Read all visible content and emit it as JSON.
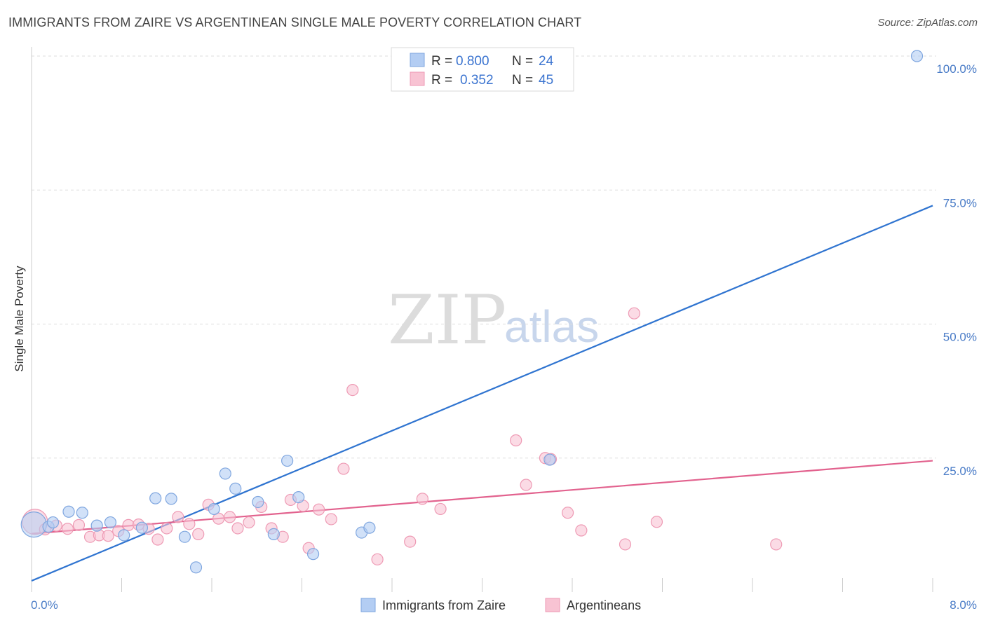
{
  "chart_data": {
    "type": "scatter",
    "title": "IMMIGRANTS FROM ZAIRE VS ARGENTINEAN SINGLE MALE POVERTY CORRELATION CHART",
    "source": "Source: ZipAtlas.com",
    "xlabel": "",
    "ylabel": "Single Male Poverty",
    "xlim": [
      0,
      8
    ],
    "ylim": [
      0,
      100
    ],
    "x_tick_labels": [
      "0.0%",
      "8.0%"
    ],
    "y_ticks": [
      25,
      50,
      75,
      100
    ],
    "y_tick_labels": [
      "25.0%",
      "50.0%",
      "75.0%",
      "100.0%"
    ],
    "grid": true,
    "watermark": {
      "zip": "ZIP",
      "atlas": "atlas"
    },
    "colors": {
      "blue_fill": "#b3cdf3",
      "blue_stroke": "#7fa6df",
      "blue_line": "#2f74d0",
      "pink_fill": "#f8c3d3",
      "pink_stroke": "#ee9ab4",
      "pink_line": "#e2628e"
    },
    "stats": [
      {
        "r_label": "R = ",
        "r_value": "0.800",
        "n_label": "N = ",
        "n_value": "24"
      },
      {
        "r_label": "R = ",
        "r_value": "0.352",
        "n_label": "N = ",
        "n_value": "45"
      }
    ],
    "series": [
      {
        "name": "Immigrants from Zaire",
        "color": "blue",
        "trend": {
          "x": [
            0,
            8
          ],
          "y": [
            2.1,
            72.1
          ]
        },
        "points": [
          {
            "x": 0.02,
            "y": 12.6,
            "big": true
          },
          {
            "x": 0.15,
            "y": 12.2
          },
          {
            "x": 0.19,
            "y": 13.0
          },
          {
            "x": 0.33,
            "y": 15.0
          },
          {
            "x": 0.45,
            "y": 14.8
          },
          {
            "x": 0.58,
            "y": 12.4
          },
          {
            "x": 0.7,
            "y": 13.0
          },
          {
            "x": 0.82,
            "y": 10.6
          },
          {
            "x": 0.98,
            "y": 12.0
          },
          {
            "x": 1.1,
            "y": 17.5
          },
          {
            "x": 1.24,
            "y": 17.4
          },
          {
            "x": 1.36,
            "y": 10.3
          },
          {
            "x": 1.46,
            "y": 4.6
          },
          {
            "x": 1.62,
            "y": 15.5
          },
          {
            "x": 1.72,
            "y": 22.1
          },
          {
            "x": 1.81,
            "y": 19.3
          },
          {
            "x": 2.01,
            "y": 16.8
          },
          {
            "x": 2.15,
            "y": 10.8
          },
          {
            "x": 2.27,
            "y": 24.5
          },
          {
            "x": 2.37,
            "y": 17.7
          },
          {
            "x": 2.5,
            "y": 7.1
          },
          {
            "x": 2.93,
            "y": 11.1
          },
          {
            "x": 3.0,
            "y": 12.0
          },
          {
            "x": 4.6,
            "y": 24.7
          },
          {
            "x": 7.86,
            "y": 100.0
          }
        ]
      },
      {
        "name": "Argentineans",
        "color": "pink",
        "trend": {
          "x": [
            0,
            8
          ],
          "y": [
            10.9,
            24.5
          ]
        },
        "points": [
          {
            "x": 0.03,
            "y": 13.1,
            "big": true
          },
          {
            "x": 0.12,
            "y": 11.7
          },
          {
            "x": 0.22,
            "y": 12.4
          },
          {
            "x": 0.32,
            "y": 11.8
          },
          {
            "x": 0.42,
            "y": 12.5
          },
          {
            "x": 0.52,
            "y": 10.3
          },
          {
            "x": 0.6,
            "y": 10.6
          },
          {
            "x": 0.68,
            "y": 10.5
          },
          {
            "x": 0.77,
            "y": 11.4
          },
          {
            "x": 0.86,
            "y": 12.5
          },
          {
            "x": 0.95,
            "y": 12.6
          },
          {
            "x": 1.04,
            "y": 11.8
          },
          {
            "x": 1.12,
            "y": 9.8
          },
          {
            "x": 1.2,
            "y": 11.9
          },
          {
            "x": 1.3,
            "y": 14.0
          },
          {
            "x": 1.4,
            "y": 12.7
          },
          {
            "x": 1.48,
            "y": 10.8
          },
          {
            "x": 1.57,
            "y": 16.3
          },
          {
            "x": 1.66,
            "y": 13.7
          },
          {
            "x": 1.76,
            "y": 14.0
          },
          {
            "x": 1.83,
            "y": 11.9
          },
          {
            "x": 1.93,
            "y": 13.0
          },
          {
            "x": 2.04,
            "y": 15.9
          },
          {
            "x": 2.13,
            "y": 11.9
          },
          {
            "x": 2.23,
            "y": 10.3
          },
          {
            "x": 2.3,
            "y": 17.2
          },
          {
            "x": 2.41,
            "y": 16.1
          },
          {
            "x": 2.46,
            "y": 8.2
          },
          {
            "x": 2.55,
            "y": 15.4
          },
          {
            "x": 2.66,
            "y": 13.6
          },
          {
            "x": 2.77,
            "y": 23.0
          },
          {
            "x": 2.85,
            "y": 37.7
          },
          {
            "x": 3.07,
            "y": 6.1
          },
          {
            "x": 3.36,
            "y": 9.4
          },
          {
            "x": 3.47,
            "y": 17.4
          },
          {
            "x": 3.63,
            "y": 15.5
          },
          {
            "x": 4.3,
            "y": 28.3
          },
          {
            "x": 4.39,
            "y": 20.0
          },
          {
            "x": 4.56,
            "y": 25.0
          },
          {
            "x": 4.61,
            "y": 24.8
          },
          {
            "x": 4.76,
            "y": 14.8
          },
          {
            "x": 4.88,
            "y": 11.5
          },
          {
            "x": 5.27,
            "y": 8.9
          },
          {
            "x": 5.35,
            "y": 52.0
          },
          {
            "x": 5.55,
            "y": 13.1
          },
          {
            "x": 6.61,
            "y": 8.9
          }
        ]
      }
    ]
  }
}
